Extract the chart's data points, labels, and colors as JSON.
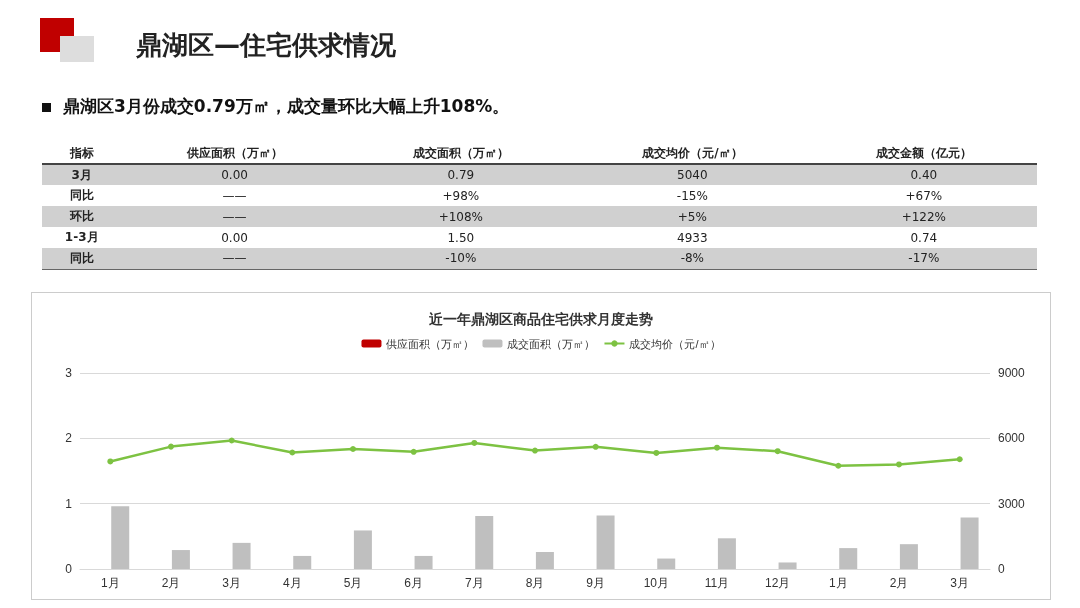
{
  "chart_data": [
    {
      "type": "other",
      "title": "鼎湖区—住宅供求情况",
      "subtitle": "鼎湖区3月份成交0.79万㎡，成交量环比大幅上升108%。",
      "annotations": [
        "指标",
        "供应面积（万㎡）",
        "成交面积（万㎡）",
        "成交均价（元/㎡）",
        "成交金额（亿元）",
        "3月",
        "0.00",
        "0.79",
        "5040",
        "0.40",
        "同比",
        "——",
        "+98%",
        "-15%",
        "+67%",
        "环比",
        "——",
        "+108%",
        "+5%",
        "+122%",
        "1-3月",
        "0.00",
        "1.50",
        "4933",
        "0.74",
        "同比",
        "——",
        "-10%",
        "-8%",
        "-17%"
      ]
    },
    {
      "type": "bar",
      "title": "近一年鼎湖区商品住宅供求月度走势",
      "categories": [
        "1月",
        "2月",
        "3月",
        "4月",
        "5月",
        "6月",
        "7月",
        "8月",
        "9月",
        "10月",
        "11月",
        "12月",
        "1月",
        "2月",
        "3月"
      ],
      "series": [
        {
          "name": "供应面积（万㎡）",
          "color": "#c00000",
          "values": [
            0,
            0,
            0,
            0,
            0,
            0,
            0,
            0,
            0,
            0,
            0,
            0,
            0,
            0,
            0
          ]
        },
        {
          "name": "成交面积（万㎡）",
          "color": "#bfbfbf",
          "values": [
            0.96,
            0.29,
            0.4,
            0.2,
            0.59,
            0.2,
            0.81,
            0.26,
            0.82,
            0.16,
            0.47,
            0.1,
            0.32,
            0.38,
            0.79
          ]
        },
        {
          "name": "成交均价（元/㎡）",
          "type": "line",
          "axis": "y2",
          "color": "#7dc242",
          "marker": "circle",
          "values": [
            4940,
            5620,
            5900,
            5350,
            5510,
            5380,
            5790,
            5440,
            5610,
            5330,
            5570,
            5410,
            4740,
            4800,
            5040
          ]
        }
      ],
      "ylim": [
        0,
        3
      ],
      "yticks": [
        0,
        1,
        2,
        3
      ],
      "y2lim": [
        0,
        9000
      ],
      "y2ticks": [
        0,
        3000,
        6000,
        9000
      ],
      "grid": "y",
      "legend": "top"
    }
  ]
}
